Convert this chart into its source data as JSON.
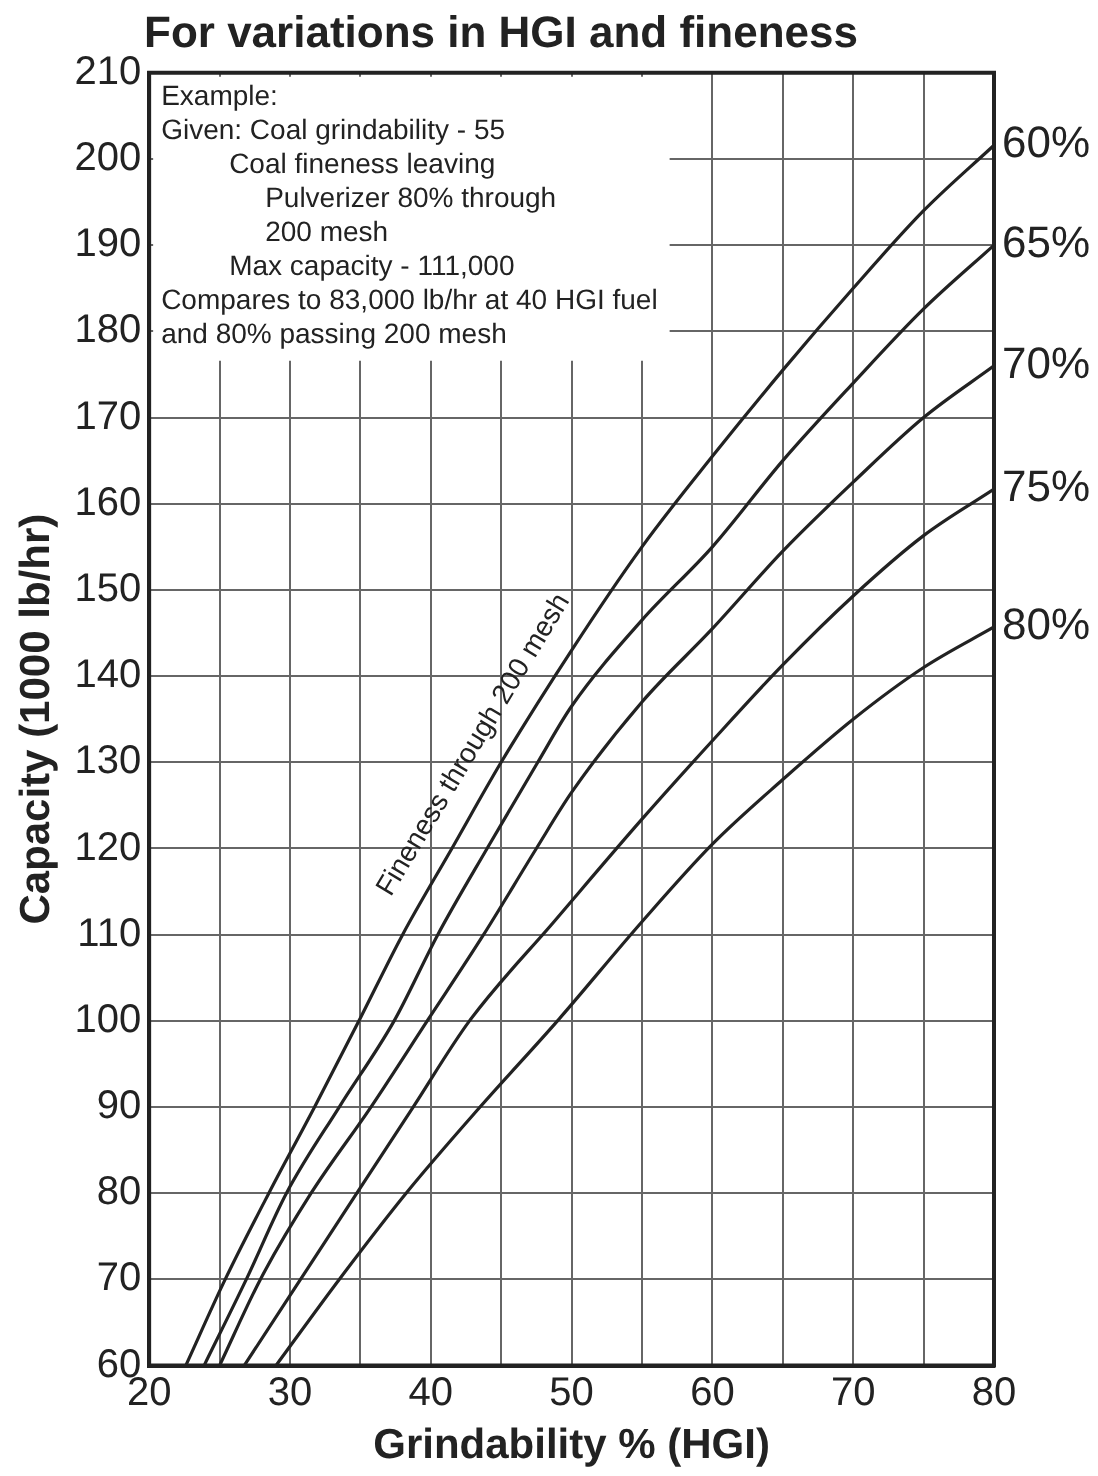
{
  "chart_data": {
    "type": "line",
    "title": "For variations in HGI and fineness",
    "xlabel": "Grindability % (HGI)",
    "ylabel": "Capacity (1000 lb/hr)",
    "annotations": [
      "Example:\nGiven: Coal grindability - 55\nCoal fineness leaving\nPulverizer 80% through\n200 mesh\nMax capacity - 111,000\nCompares to 83,000 lb/hr at 40 HGI fuel\nand 80% passing 200 mesh",
      "Fineness through 200 mesh"
    ],
    "series": [
      {
        "name": "60%",
        "color": "#222222",
        "x": [
          22.6,
          25.4,
          28.5,
          31.75,
          34.9,
          38,
          41.5,
          45,
          50,
          55,
          60,
          65,
          70,
          75,
          80
        ],
        "values": [
          60,
          70,
          80,
          90,
          100,
          110,
          120,
          130,
          143,
          155,
          165.5,
          175.5,
          185,
          194,
          201.6
        ]
      },
      {
        "name": "65%",
        "color": "#222222",
        "x": [
          23.9,
          26.9,
          29.75,
          33.5,
          37.4,
          40.5,
          44,
          47.6,
          50,
          55,
          60,
          65,
          70,
          75,
          80
        ],
        "values": [
          60,
          70,
          80,
          90,
          100,
          110,
          120,
          130,
          136.5,
          146.5,
          155,
          165,
          174,
          182.6,
          190
        ]
      },
      {
        "name": "70%",
        "color": "#222222",
        "x": [
          25,
          27.9,
          31.5,
          35.75,
          39.75,
          43.75,
          47.5,
          50,
          55,
          60,
          65,
          70,
          75,
          80
        ],
        "values": [
          60,
          70,
          80,
          90,
          100,
          110,
          120,
          126.5,
          137,
          145.5,
          154.5,
          162.5,
          170,
          176
        ]
      },
      {
        "name": "75%",
        "color": "#222222",
        "x": [
          26.75,
          30.75,
          34.75,
          38.75,
          42.75,
          48.75,
          55,
          60,
          65,
          70,
          75,
          80
        ],
        "values": [
          60,
          70,
          80,
          90,
          100,
          111.5,
          123.4,
          132.5,
          141.3,
          149.3,
          156.3,
          161.7
        ]
      },
      {
        "name": "80%",
        "color": "#222222",
        "x": [
          29,
          33.5,
          38.25,
          43.5,
          49,
          55,
          60,
          65,
          70,
          75,
          80
        ],
        "values": [
          60,
          70,
          80,
          90,
          100,
          111.5,
          120.5,
          128,
          135,
          141,
          145.7
        ]
      }
    ],
    "xlim": [
      20,
      80
    ],
    "xticks": [
      20,
      {
        "value": 25,
        "label": null
      },
      30,
      {
        "value": 35,
        "label": null
      },
      40,
      {
        "value": 45,
        "label": null
      },
      50,
      {
        "value": 55,
        "label": null
      },
      60,
      {
        "value": 65,
        "label": null
      },
      70,
      {
        "value": 75,
        "label": null
      },
      80
    ],
    "ylim": [
      60,
      210
    ],
    "yticks": [
      60,
      70,
      80,
      90,
      100,
      110,
      120,
      130,
      140,
      150,
      160,
      170,
      180,
      190,
      200,
      210
    ],
    "grid": true,
    "legend": false,
    "marker": "none",
    "line_style": "solid"
  }
}
